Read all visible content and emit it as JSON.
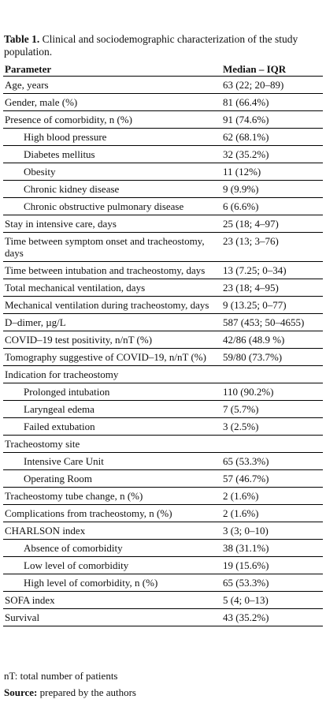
{
  "caption": {
    "label": "Table 1.",
    "text": "Clinical and sociodemographic characterization of the study population."
  },
  "table": {
    "header": [
      "Parameter",
      "Median – IQR"
    ],
    "rows": [
      [
        "Age, years",
        "63 (22; 20–89)"
      ],
      [
        "Gender, male (%)",
        "81 (66.4%)"
      ],
      [
        "Presence of comorbidity, n (%)",
        "91 (74.6%)"
      ],
      [
        "High blood pressure",
        "62 (68.1%)"
      ],
      [
        "Diabetes mellitus",
        "32 (35.2%)"
      ],
      [
        "Obesity",
        "11 (12%)"
      ],
      [
        "Chronic kidney disease",
        "9 (9.9%)"
      ],
      [
        "Chronic obstructive pulmonary disease",
        "6 (6.6%)"
      ],
      [
        "Stay in intensive care, days",
        "25 (18; 4–97)"
      ],
      [
        "Time between symptom onset and tracheostomy, days",
        "23 (13; 3–76)"
      ],
      [
        "Time between intubation and tracheostomy, days",
        "13 (7.25; 0–34)"
      ],
      [
        "Total mechanical ventilation, days",
        "23 (18; 4–95)"
      ],
      [
        "Mechanical ventilation during tracheostomy, days",
        "9 (13.25; 0–77)"
      ],
      [
        "D–dimer, µg/L",
        "587 (453; 50–4655)"
      ],
      [
        "COVID–19 test positivity, n/nT (%)",
        "42/86 (48.9 %)"
      ],
      [
        "Tomography suggestive of COVID–19, n/nT (%)",
        "59/80 (73.7%)"
      ],
      [
        "Indication for tracheostomy",
        "&nbsp;"
      ],
      [
        "Prolonged intubation",
        "110 (90.2%)"
      ],
      [
        "Laryngeal edema",
        "7 (5.7%)"
      ],
      [
        "Failed extubation",
        "3 (2.5%)"
      ],
      [
        "Tracheostomy site",
        null
      ],
      [
        "Intensive Care Unit",
        "65 (53.3%)"
      ],
      [
        "Operating Room",
        "57 (46.7%)"
      ],
      [
        "Tracheostomy tube change, n (%)",
        "2 (1.6%)"
      ],
      [
        "Complications from tracheostomy, n (%)",
        "2 (1.6%)"
      ],
      [
        "CHARLSON index",
        "3 (3; 0–10)"
      ],
      [
        "Absence of comorbidity",
        "38 (31.1%)"
      ],
      [
        "Low level of comorbidity",
        "19 (15.6%)"
      ],
      [
        "High level of comorbidity, n (%)",
        "65 (53.3%)"
      ],
      [
        "SOFA index",
        "5 (4; 0–13)"
      ],
      [
        "Survival",
        "43 (35.2%)"
      ]
    ]
  },
  "footnote": "nT: total number of patients",
  "source": {
    "label": "Source:",
    "text": "prepared by the authors"
  }
}
